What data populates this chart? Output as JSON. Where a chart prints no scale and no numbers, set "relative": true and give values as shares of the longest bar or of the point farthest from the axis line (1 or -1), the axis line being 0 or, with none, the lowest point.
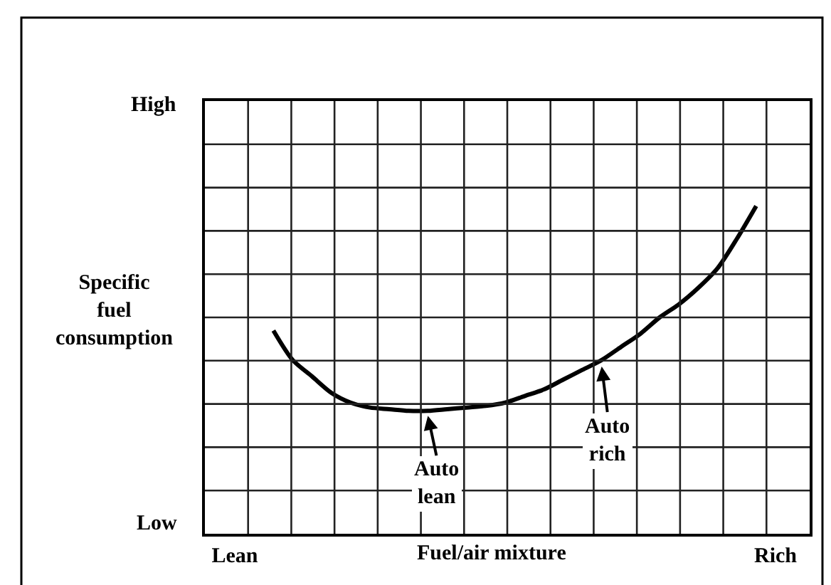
{
  "chart_data": {
    "type": "line",
    "relative": true,
    "xlabel": "Fuel/air mixture",
    "ylabel": "Specific fuel consumption",
    "categories": [
      "Lean",
      null,
      null,
      null,
      null,
      null,
      null,
      null,
      null,
      null,
      null,
      null,
      null,
      null,
      null,
      null,
      null,
      null,
      null,
      null,
      null,
      null,
      null,
      null,
      null,
      null,
      null,
      null,
      "Rich"
    ],
    "series": [
      {
        "color": "#000000",
        "values": [
          null,
          null,
          0.62,
          0.53,
          0.48,
          0.43,
          0.4,
          0.385,
          0.38,
          0.375,
          0.375,
          0.38,
          0.385,
          0.39,
          0.4,
          0.42,
          0.44,
          0.47,
          0.5,
          0.53,
          0.57,
          0.61,
          0.66,
          0.7,
          0.75,
          0.81,
          0.9,
          1.0,
          null
        ]
      }
    ],
    "annotations": [
      "High",
      "Low",
      "Auto lean",
      "Auto rich"
    ],
    "grid": true,
    "marker": "none",
    "line_style": "solid"
  }
}
